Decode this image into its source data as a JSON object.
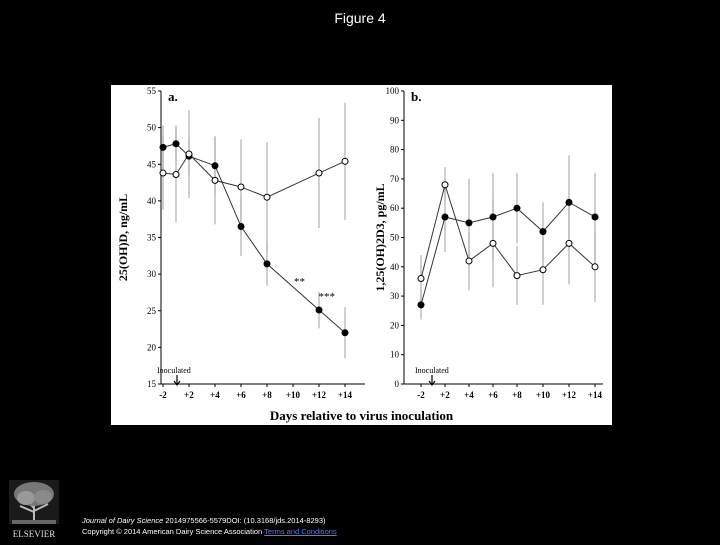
{
  "page": {
    "title": "Figure 4"
  },
  "figure": {
    "xlabel": "Days relative to virus inoculation"
  },
  "citation": {
    "journal": "Journal of Dairy Science",
    "rest": " 2014975566-5579DOI: (10.3168/jds.2014-8293)",
    "copyright": "Copyright © 2014 American Dairy Science Association",
    "link": "Terms and Conditions"
  },
  "logo": {
    "text": "ELSEVIER"
  },
  "chart_data": [
    {
      "type": "line",
      "panel_label": "a.",
      "ylabel": "25(OH)D, ng/mL",
      "ylim": [
        15,
        55
      ],
      "yticks": [
        15,
        20,
        25,
        30,
        35,
        40,
        45,
        50,
        55
      ],
      "x_ticklabels": [
        "-2",
        "+2",
        "+4",
        "+6",
        "+8",
        "+10",
        "+12",
        "+14"
      ],
      "x": [
        -2,
        0,
        2,
        4,
        6,
        8,
        10,
        12,
        14
      ],
      "series": [
        {
          "marker": "filled",
          "values": [
            47.3,
            47.8,
            46.1,
            44.8,
            36.5,
            31.4,
            null,
            25.1,
            22.0
          ],
          "error": [
            3.0,
            2.5,
            2.5,
            4.0,
            4.0,
            3.0,
            null,
            2.5,
            3.5
          ]
        },
        {
          "marker": "open",
          "values": [
            43.8,
            43.6,
            46.4,
            42.8,
            41.9,
            40.5,
            null,
            43.8,
            45.4
          ],
          "error": [
            5.0,
            6.5,
            6.0,
            6.0,
            6.5,
            7.5,
            null,
            7.5,
            8.0
          ]
        }
      ],
      "annotations": [
        {
          "text": "**",
          "x": 10.5,
          "y": 28.5
        },
        {
          "text": "***",
          "x": 12.6,
          "y": 26.5
        },
        {
          "text": "Inoculated",
          "x": -2.4,
          "y": 17.2
        }
      ],
      "arrow_at_x": 0
    },
    {
      "type": "line",
      "panel_label": "b.",
      "ylabel": "1,25(OH)2D3, pg/mL",
      "ylim": [
        0,
        100
      ],
      "yticks": [
        0,
        10,
        20,
        30,
        40,
        50,
        60,
        70,
        80,
        90,
        100
      ],
      "x_ticklabels": [
        "-2",
        "+2",
        "+4",
        "+6",
        "+8",
        "+10",
        "+12",
        "+14"
      ],
      "x": [
        -2,
        2,
        4,
        6,
        8,
        10,
        12,
        14
      ],
      "series": [
        {
          "marker": "filled",
          "values": [
            27,
            57,
            55,
            57,
            60,
            52,
            62,
            57
          ],
          "error": [
            5,
            12,
            15,
            15,
            12,
            10,
            16,
            15
          ]
        },
        {
          "marker": "open",
          "values": [
            36,
            68,
            42,
            48,
            37,
            39,
            48,
            40
          ],
          "error": [
            8,
            6,
            10,
            15,
            10,
            12,
            14,
            12
          ]
        }
      ],
      "annotations": [
        {
          "text": "Inoculated",
          "x": -1.8,
          "y": 4.5
        }
      ],
      "arrow_at_x": -0.3
    }
  ]
}
